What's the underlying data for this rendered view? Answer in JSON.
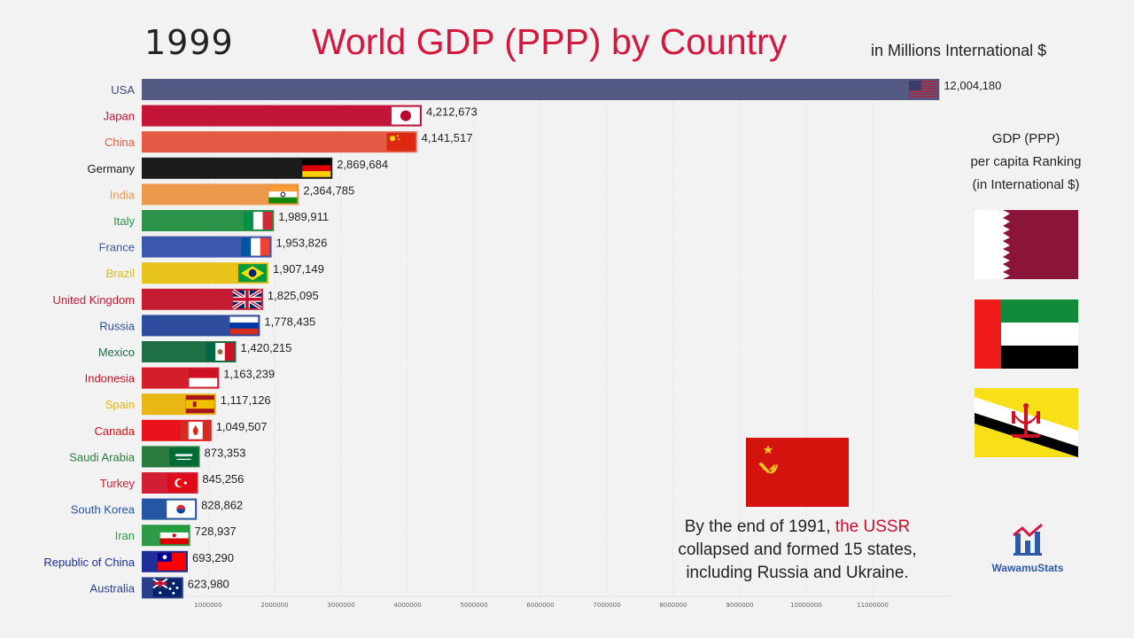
{
  "year": "1999",
  "title": "World GDP (PPP) by Country",
  "unit_label": "in Millions International $",
  "per_capita": {
    "title_lines": [
      "GDP (PPP)",
      "per capita Ranking",
      "(in International $)"
    ],
    "flags": [
      "qatar-flag",
      "uae-flag",
      "brunei-flag"
    ]
  },
  "note": {
    "prefix": "By the end of 1991, ",
    "highlight": "the USSR",
    "line2": "collapsed and formed 15 states,",
    "line3": "including Russia and Ukraine."
  },
  "logo": {
    "name": "WawamuStats"
  },
  "chart_data": {
    "type": "bar",
    "orientation": "horizontal",
    "title": "World GDP (PPP) by Country",
    "xlabel": "in Millions International $",
    "xlim": [
      0,
      12000000
    ],
    "x_ticks": [
      1000000,
      2000000,
      3000000,
      4000000,
      5000000,
      6000000,
      7000000,
      8000000,
      9000000,
      10000000,
      11000000
    ],
    "categories": [
      "USA",
      "Japan",
      "China",
      "Germany",
      "India",
      "Italy",
      "France",
      "Brazil",
      "United Kingdom",
      "Russia",
      "Mexico",
      "Indonesia",
      "Spain",
      "Canada",
      "Saudi Arabia",
      "Turkey",
      "South Korea",
      "Iran",
      "Republic of China",
      "Australia"
    ],
    "values": [
      12004180,
      4212673,
      4141517,
      2869684,
      2364785,
      1989911,
      1953826,
      1907149,
      1825095,
      1778435,
      1420215,
      1163239,
      1117126,
      1049507,
      873353,
      845256,
      828862,
      728937,
      693290,
      623980
    ],
    "value_labels": [
      "12,004,180",
      "4,212,673",
      "4,141,517",
      "2,869,684",
      "2,364,785",
      "1,989,911",
      "1,953,826",
      "1,907,149",
      "1,825,095",
      "1,778,435",
      "1,420,215",
      "1,163,239",
      "1,117,126",
      "1,049,507",
      "873,353",
      "845,256",
      "828,862",
      "728,937",
      "693,290",
      "623,980"
    ],
    "colors": [
      "#555a85",
      "#c3143a",
      "#e55a45",
      "#1b1b1b",
      "#eb9a4b",
      "#2a9349",
      "#3b58ad",
      "#e8c31a",
      "#c51c33",
      "#2f4d9e",
      "#1e6f45",
      "#d51e2c",
      "#e9b614",
      "#e8131b",
      "#2b7a3f",
      "#d21e35",
      "#2456a3",
      "#2f9a47",
      "#1f2e99",
      "#2a3f8b"
    ],
    "label_colors": [
      "#3d4a7c",
      "#c0143a",
      "#e55a45",
      "#1b1b1b",
      "#eb9a4b",
      "#2a9349",
      "#3b58ad",
      "#e0bb14",
      "#c51c33",
      "#2f4d9e",
      "#1e6f45",
      "#c8152a",
      "#e9b614",
      "#d81117",
      "#2b7a3f",
      "#d21e35",
      "#2456a3",
      "#2f9a47",
      "#1f2e99",
      "#2a3f8b"
    ],
    "flags": [
      "usa",
      "japan",
      "china",
      "germany",
      "india",
      "italy",
      "france",
      "brazil",
      "uk",
      "russia",
      "mexico",
      "indonesia",
      "spain",
      "canada",
      "saudi",
      "turkey",
      "korea",
      "iran",
      "roc",
      "australia"
    ]
  }
}
